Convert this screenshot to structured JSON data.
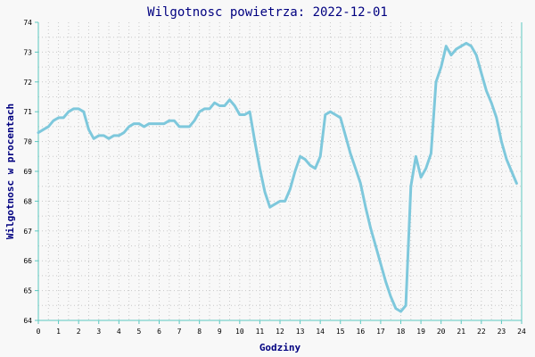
{
  "chart_data": {
    "type": "line",
    "title": "Wilgotnosc powietrza: 2022-12-01",
    "xlabel": "Godziny",
    "ylabel": "Wilgotnosc w procentach",
    "xlim": [
      0,
      24
    ],
    "ylim": [
      64,
      74
    ],
    "xticks": [
      "0",
      "1",
      "2",
      "3",
      "4",
      "5",
      "6",
      "7",
      "8",
      "9",
      "10",
      "11",
      "12",
      "13",
      "14",
      "15",
      "16",
      "17",
      "18",
      "19",
      "20",
      "21",
      "22",
      "23",
      "24"
    ],
    "yticks": [
      "64",
      "65",
      "66",
      "67",
      "68",
      "69",
      "70",
      "71",
      "72",
      "73",
      "74"
    ],
    "grid": true,
    "colors": {
      "line": "#7ec8dc",
      "axis": "#5cc8c0",
      "grid": "#c8c8c8",
      "text": "#000080",
      "background": "#f8f8f8"
    },
    "series": [
      {
        "x": [
          0,
          0.25,
          0.5,
          0.75,
          1.0,
          1.25,
          1.5,
          1.75,
          2.0,
          2.25,
          2.5,
          2.75,
          3.0,
          3.25,
          3.5,
          3.75,
          4.0,
          4.25,
          4.5,
          4.75,
          5.0,
          5.25,
          5.5,
          5.75,
          6.0,
          6.25,
          6.5,
          6.75,
          7.0,
          7.25,
          7.5,
          7.75,
          8.0,
          8.25,
          8.5,
          8.75,
          9.0,
          9.25,
          9.5,
          9.75,
          10.0,
          10.25,
          10.5,
          10.75,
          11.0,
          11.25,
          11.5,
          11.75,
          12.0,
          12.25,
          12.5,
          12.75,
          13.0,
          13.25,
          13.5,
          13.75,
          14.0,
          14.25,
          14.5,
          14.75,
          15.0,
          15.25,
          15.5,
          15.75,
          16.0,
          16.25,
          16.5,
          16.75,
          17.0,
          17.25,
          17.5,
          17.75,
          18.0,
          18.25,
          18.5,
          18.75,
          19.0,
          19.25,
          19.5,
          19.75,
          20.0,
          20.25,
          20.5,
          20.75,
          21.0,
          21.25,
          21.5,
          21.75,
          22.0,
          22.25,
          22.5,
          22.75,
          23.0,
          23.25,
          23.5,
          23.75
        ],
        "y": [
          70.3,
          70.4,
          70.5,
          70.7,
          70.8,
          70.8,
          71.0,
          71.1,
          71.1,
          71.0,
          70.4,
          70.1,
          70.2,
          70.2,
          70.1,
          70.2,
          70.2,
          70.3,
          70.5,
          70.6,
          70.6,
          70.5,
          70.6,
          70.6,
          70.6,
          70.6,
          70.7,
          70.7,
          70.5,
          70.5,
          70.5,
          70.7,
          71.0,
          71.1,
          71.1,
          71.3,
          71.2,
          71.2,
          71.4,
          71.2,
          70.9,
          70.9,
          71.0,
          70.0,
          69.1,
          68.3,
          67.8,
          67.9,
          68.0,
          68.0,
          68.4,
          69.0,
          69.5,
          69.4,
          69.2,
          69.1,
          69.5,
          70.9,
          71.0,
          70.9,
          70.8,
          70.2,
          69.6,
          69.1,
          68.6,
          67.8,
          67.1,
          66.5,
          65.9,
          65.3,
          64.8,
          64.4,
          64.3,
          64.5,
          68.5,
          69.5,
          68.8,
          69.1,
          69.6,
          72.0,
          72.5,
          73.2,
          72.9,
          73.1,
          73.2,
          73.3,
          73.2,
          72.9,
          72.3,
          71.7,
          71.3,
          70.8,
          70.0,
          69.4,
          69.0,
          68.6
        ]
      }
    ]
  }
}
